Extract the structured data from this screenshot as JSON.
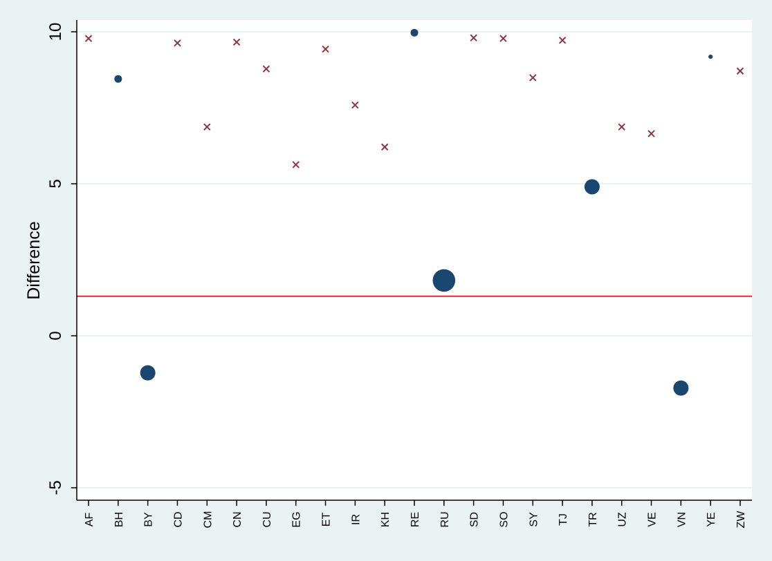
{
  "chart_data": {
    "type": "scatter",
    "ylabel": "Difference",
    "xlabel": "",
    "title": "",
    "ylim": [
      -5.5,
      10.3
    ],
    "yticks": [
      -5,
      0,
      5,
      10
    ],
    "ytick_labels": [
      "-5",
      "0",
      "5",
      "10"
    ],
    "grid": "horizontal",
    "legend": "none",
    "categories": [
      "AF",
      "BH",
      "BY",
      "CD",
      "CM",
      "CN",
      "CU",
      "EG",
      "ET",
      "IR",
      "KH",
      "RE",
      "RU",
      "SD",
      "SO",
      "SY",
      "TJ",
      "TR",
      "UZ",
      "VE",
      "VN",
      "YE",
      "ZW"
    ],
    "reference_line": {
      "y": 1.3,
      "color": "#e8262a"
    },
    "colors": {
      "background": "#eaf2f3",
      "plot_background": "#ffffff",
      "circle": "#1a476f",
      "cross": "#90353b",
      "grid": "#eaf2f3"
    },
    "series": [
      {
        "marker": "circle",
        "points": [
          {
            "x": "BH",
            "y": 8.45,
            "size": 0.25
          },
          {
            "x": "BY",
            "y": -1.22,
            "size": 1.0
          },
          {
            "x": "RE",
            "y": 9.97,
            "size": 0.25
          },
          {
            "x": "RU",
            "y": 1.82,
            "size": 2.2
          },
          {
            "x": "TR",
            "y": 4.9,
            "size": 1.0
          },
          {
            "x": "VN",
            "y": -1.72,
            "size": 1.0
          },
          {
            "x": "YE",
            "y": 9.18,
            "size": 0.08
          }
        ]
      },
      {
        "marker": "x",
        "points": [
          {
            "x": "AF",
            "y": 9.78
          },
          {
            "x": "CD",
            "y": 9.63
          },
          {
            "x": "CM",
            "y": 6.87
          },
          {
            "x": "CN",
            "y": 9.66
          },
          {
            "x": "CU",
            "y": 8.78
          },
          {
            "x": "EG",
            "y": 5.63
          },
          {
            "x": "ET",
            "y": 9.43
          },
          {
            "x": "IR",
            "y": 7.59
          },
          {
            "x": "KH",
            "y": 6.21
          },
          {
            "x": "SD",
            "y": 9.8
          },
          {
            "x": "SO",
            "y": 9.78
          },
          {
            "x": "SY",
            "y": 8.49
          },
          {
            "x": "TJ",
            "y": 9.72
          },
          {
            "x": "UZ",
            "y": 6.87
          },
          {
            "x": "VE",
            "y": 6.65
          },
          {
            "x": "ZW",
            "y": 8.71
          }
        ]
      }
    ]
  }
}
